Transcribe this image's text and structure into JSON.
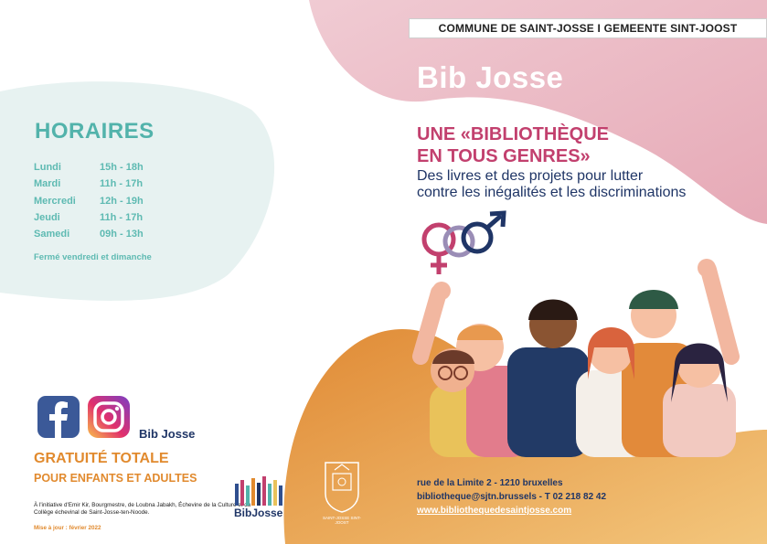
{
  "banner": "COMMUNE DE SAINT-JOSSE I GEMEENTE SINT-JOOST",
  "brand": "Bib Josse",
  "headline": [
    "UNE «BIBLIOTHÈQUE",
    "EN TOUS GENRES»"
  ],
  "subline": [
    "Des livres et des projets pour lutter",
    "contre les inégalités et les discriminations"
  ],
  "hours": {
    "title": "HORAIRES",
    "rows": [
      {
        "day": "Lundi",
        "time": "15h - 18h"
      },
      {
        "day": "Mardi",
        "time": "11h - 17h"
      },
      {
        "day": "Mercredi",
        "time": "12h - 19h"
      },
      {
        "day": "Jeudi",
        "time": "11h - 17h"
      },
      {
        "day": "Samedi",
        "time": "09h - 13h"
      }
    ],
    "closed": "Fermé vendredi et dimanche"
  },
  "social": {
    "name": "Bib Josse",
    "icons": [
      "facebook-icon",
      "instagram-icon"
    ]
  },
  "free": {
    "line1": "GRATUITÉ TOTALE",
    "line2": "POUR ENFANTS ET ADULTES"
  },
  "credit": "À l'initiative d'Emir Kir, Bourgmestre, de Loubna Jabakh, Échevine de la Culture et du Collège échevinal de Saint-Josse-ten-Noode.",
  "update": "Mise à jour : février 2022",
  "logo": {
    "text": "BibJosse"
  },
  "seal": {
    "label": "SAINT-JOSSE SINT-JOOST"
  },
  "contact": {
    "address": "rue de la Limite 2 - 1210 bruxelles",
    "email_phone": "bibliotheque@sjtn.brussels - T 02 218 82 42",
    "web": "www.bibliothequedesaintjosse.com"
  },
  "colors": {
    "pink": "#c2406e",
    "navy": "#1f3566",
    "teal": "#52b3ab",
    "orange": "#e18a2e"
  }
}
